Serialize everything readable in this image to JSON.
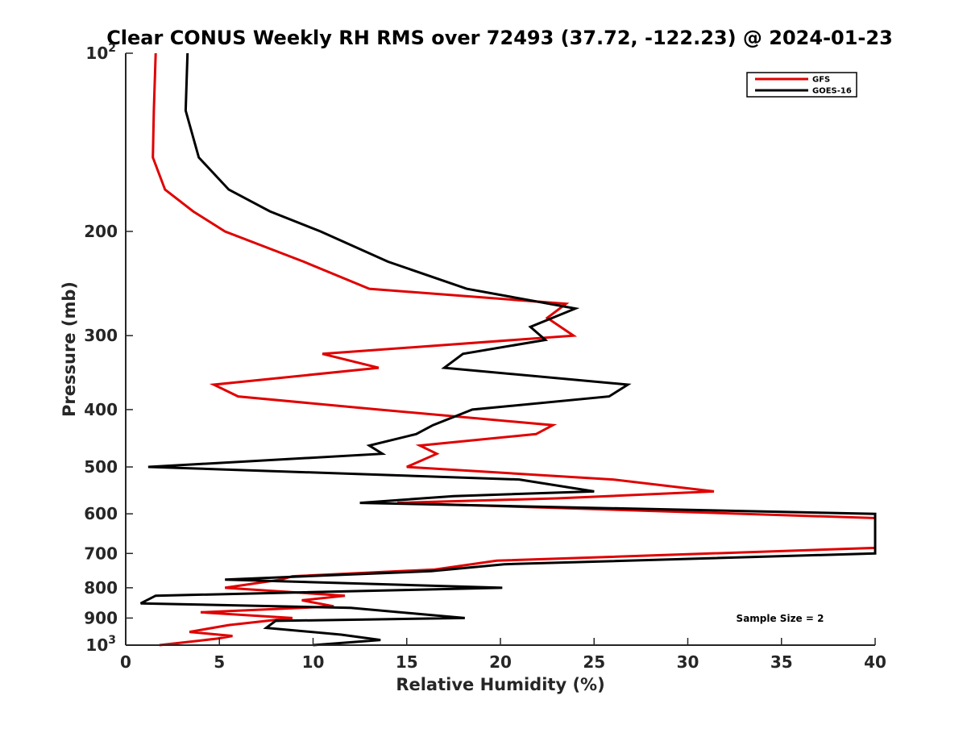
{
  "chart_data": {
    "type": "line",
    "title": "Clear CONUS Weekly RH RMS over 72493 (37.72, -122.23) @ 2024-01-23",
    "xlabel": "Relative Humidity (%)",
    "ylabel": "Pressure (mb)",
    "xlim": [
      0,
      40
    ],
    "ylim": [
      100,
      1000
    ],
    "y_scale": "log",
    "y_reversed": true,
    "x_ticks": [
      0,
      5,
      10,
      15,
      20,
      25,
      30,
      35,
      40
    ],
    "y_ticks": [
      {
        "value": 100,
        "label": "10",
        "sup": "2"
      },
      {
        "value": 200,
        "label": "200"
      },
      {
        "value": 300,
        "label": "300"
      },
      {
        "value": 400,
        "label": "400"
      },
      {
        "value": 500,
        "label": "500"
      },
      {
        "value": 600,
        "label": "600"
      },
      {
        "value": 700,
        "label": "700"
      },
      {
        "value": 800,
        "label": "800"
      },
      {
        "value": 900,
        "label": "900"
      },
      {
        "value": 1000,
        "label": "10",
        "sup": "3"
      }
    ],
    "legend": {
      "position": "top-right"
    },
    "annotation": "Sample Size = 2",
    "series": [
      {
        "name": "GFS",
        "color": "#e00000",
        "points": [
          [
            1.6,
            100
          ],
          [
            1.5,
            125
          ],
          [
            1.45,
            150
          ],
          [
            2.1,
            170
          ],
          [
            3.6,
            185
          ],
          [
            5.3,
            200
          ],
          [
            9.5,
            225
          ],
          [
            13.0,
            250
          ],
          [
            23.5,
            265
          ],
          [
            22.5,
            280
          ],
          [
            23.9,
            300
          ],
          [
            10.5,
            322
          ],
          [
            13.5,
            340
          ],
          [
            4.7,
            363
          ],
          [
            6.0,
            380
          ],
          [
            13.5,
            400
          ],
          [
            22.8,
            425
          ],
          [
            21.9,
            440
          ],
          [
            15.7,
            460
          ],
          [
            16.6,
            475
          ],
          [
            15.0,
            500
          ],
          [
            26.0,
            525
          ],
          [
            31.4,
            550
          ],
          [
            23.0,
            565
          ],
          [
            14.5,
            575
          ],
          [
            40.0,
            610
          ],
          [
            40.0,
            685
          ],
          [
            19.8,
            720
          ],
          [
            16.5,
            745
          ],
          [
            8.9,
            765
          ],
          [
            8.3,
            775
          ],
          [
            5.3,
            800
          ],
          [
            11.7,
            825
          ],
          [
            9.4,
            840
          ],
          [
            11.1,
            860
          ],
          [
            4.0,
            880
          ],
          [
            8.9,
            900
          ],
          [
            5.5,
            925
          ],
          [
            3.4,
            950
          ],
          [
            5.7,
            965
          ],
          [
            4.9,
            975
          ],
          [
            1.8,
            1000
          ]
        ]
      },
      {
        "name": "GOES-16",
        "color": "#000000",
        "points": [
          [
            3.3,
            100
          ],
          [
            3.2,
            125
          ],
          [
            3.9,
            150
          ],
          [
            5.5,
            170
          ],
          [
            7.7,
            185
          ],
          [
            10.4,
            200
          ],
          [
            14.0,
            225
          ],
          [
            18.2,
            250
          ],
          [
            24.0,
            270
          ],
          [
            21.6,
            290
          ],
          [
            22.4,
            305
          ],
          [
            18.0,
            322
          ],
          [
            17.0,
            340
          ],
          [
            26.8,
            363
          ],
          [
            25.8,
            380
          ],
          [
            18.5,
            400
          ],
          [
            16.4,
            425
          ],
          [
            15.5,
            440
          ],
          [
            13.0,
            460
          ],
          [
            13.7,
            475
          ],
          [
            1.2,
            500
          ],
          [
            21.0,
            525
          ],
          [
            25.0,
            550
          ],
          [
            17.5,
            560
          ],
          [
            12.5,
            575
          ],
          [
            40.0,
            600
          ],
          [
            40.0,
            700
          ],
          [
            20.2,
            730
          ],
          [
            16.3,
            750
          ],
          [
            5.3,
            775
          ],
          [
            20.1,
            800
          ],
          [
            1.6,
            825
          ],
          [
            0.8,
            850
          ],
          [
            12.0,
            865
          ],
          [
            18.1,
            900
          ],
          [
            8.0,
            910
          ],
          [
            7.5,
            935
          ],
          [
            11.5,
            960
          ],
          [
            13.6,
            980
          ],
          [
            10.0,
            1000
          ]
        ]
      }
    ]
  }
}
